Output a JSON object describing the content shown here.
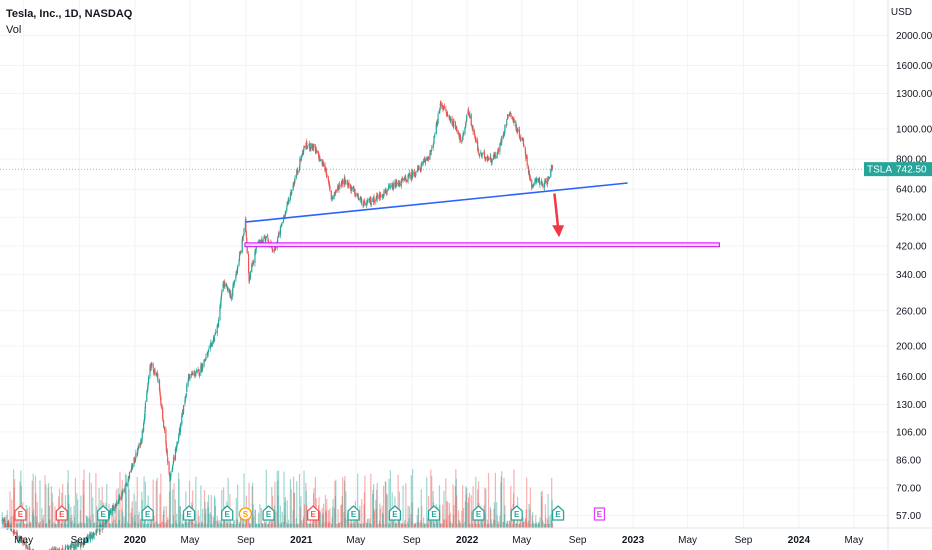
{
  "header": {
    "title": "Tesla, Inc., 1D, NASDAQ",
    "volume_label": "Vol",
    "currency": "USD"
  },
  "last_price": {
    "symbol": "TSLA",
    "value": 742.5
  },
  "colors": {
    "up": "#26a69a",
    "down": "#ef5350",
    "trendline": "#2962ff",
    "zone_border": "#d500f9",
    "zone_fill": "#f3d0f7",
    "arrow": "#f23645",
    "price_badge": "#26a69a",
    "earnings": "#26a69a",
    "earnings_loss": "#ef5350",
    "split": "#ff9800",
    "future_earnings": "#e040fb"
  },
  "chart_data": {
    "type": "candlestick",
    "y_scale": "log",
    "ylim": [
      52,
      2600
    ],
    "x_range": [
      "2019-03-10",
      "2024-07-15"
    ],
    "y_ticks": [
      57.0,
      70.0,
      86.0,
      106.0,
      130.0,
      160.0,
      200.0,
      260.0,
      340.0,
      420.0,
      520.0,
      640.0,
      800.0,
      1000.0,
      1300.0,
      1600.0,
      2000.0
    ],
    "x_ticks": [
      {
        "label": "May",
        "date": "2019-05-01",
        "bold": false
      },
      {
        "label": "Sep",
        "date": "2019-09-01",
        "bold": false
      },
      {
        "label": "2020",
        "date": "2020-01-01",
        "bold": true
      },
      {
        "label": "May",
        "date": "2020-05-01",
        "bold": false
      },
      {
        "label": "Sep",
        "date": "2020-09-01",
        "bold": false
      },
      {
        "label": "2021",
        "date": "2021-01-01",
        "bold": true
      },
      {
        "label": "May",
        "date": "2021-05-01",
        "bold": false
      },
      {
        "label": "Sep",
        "date": "2021-09-01",
        "bold": false
      },
      {
        "label": "2022",
        "date": "2022-01-01",
        "bold": true
      },
      {
        "label": "May",
        "date": "2022-05-01",
        "bold": false
      },
      {
        "label": "Sep",
        "date": "2022-09-01",
        "bold": false
      },
      {
        "label": "2023",
        "date": "2023-01-01",
        "bold": true
      },
      {
        "label": "May",
        "date": "2023-05-01",
        "bold": false
      },
      {
        "label": "Sep",
        "date": "2023-09-01",
        "bold": false
      },
      {
        "label": "2024",
        "date": "2024-01-01",
        "bold": true
      },
      {
        "label": "May",
        "date": "2024-05-01",
        "bold": false
      }
    ],
    "price_path": [
      [
        "2019-03-15",
        55
      ],
      [
        "2019-06-01",
        42
      ],
      [
        "2019-09-01",
        46
      ],
      [
        "2019-10-20",
        52
      ],
      [
        "2019-12-10",
        70
      ],
      [
        "2020-01-15",
        100
      ],
      [
        "2020-02-04",
        175
      ],
      [
        "2020-02-20",
        160
      ],
      [
        "2020-03-18",
        75
      ],
      [
        "2020-04-10",
        110
      ],
      [
        "2020-04-28",
        160
      ],
      [
        "2020-05-20",
        165
      ],
      [
        "2020-06-10",
        190
      ],
      [
        "2020-07-01",
        230
      ],
      [
        "2020-07-13",
        320
      ],
      [
        "2020-07-31",
        290
      ],
      [
        "2020-08-20",
        400
      ],
      [
        "2020-08-31",
        500
      ],
      [
        "2020-09-08",
        330
      ],
      [
        "2020-09-25",
        420
      ],
      [
        "2020-10-15",
        450
      ],
      [
        "2020-11-02",
        400
      ],
      [
        "2020-11-23",
        520
      ],
      [
        "2020-12-18",
        690
      ],
      [
        "2021-01-08",
        880
      ],
      [
        "2021-01-26",
        880
      ],
      [
        "2021-02-24",
        740
      ],
      [
        "2021-03-08",
        600
      ],
      [
        "2021-04-05",
        690
      ],
      [
        "2021-05-19",
        570
      ],
      [
        "2021-06-15",
        600
      ],
      [
        "2021-07-20",
        650
      ],
      [
        "2021-08-20",
        690
      ],
      [
        "2021-09-20",
        750
      ],
      [
        "2021-10-15",
        850
      ],
      [
        "2021-11-04",
        1210
      ],
      [
        "2021-11-20",
        1100
      ],
      [
        "2021-12-10",
        1000
      ],
      [
        "2021-12-20",
        900
      ],
      [
        "2022-01-03",
        1150
      ],
      [
        "2022-01-27",
        830
      ],
      [
        "2022-02-24",
        800
      ],
      [
        "2022-03-10",
        840
      ],
      [
        "2022-04-04",
        1145
      ],
      [
        "2022-04-20",
        1000
      ],
      [
        "2022-05-05",
        900
      ],
      [
        "2022-05-24",
        640
      ],
      [
        "2022-06-03",
        700
      ],
      [
        "2022-06-16",
        650
      ],
      [
        "2022-06-28",
        700
      ],
      [
        "2022-07-08",
        742.5
      ]
    ],
    "trendline": {
      "start": [
        "2020-09-01",
        502
      ],
      "end": [
        "2022-12-20",
        670
      ]
    },
    "support_zone": {
      "start": "2020-08-30",
      "end": "2023-07-10",
      "low": 418,
      "high": 430
    },
    "arrow": {
      "from": [
        "2022-07-12",
        620
      ],
      "to": [
        "2022-07-20",
        455
      ]
    },
    "events": [
      {
        "type": "earnings_loss",
        "label": "E",
        "date": "2019-04-24"
      },
      {
        "type": "earnings_loss",
        "label": "E",
        "date": "2019-07-24"
      },
      {
        "type": "earnings",
        "label": "E",
        "date": "2019-10-23"
      },
      {
        "type": "earnings",
        "label": "E",
        "date": "2020-01-29"
      },
      {
        "type": "earnings",
        "label": "E",
        "date": "2020-04-29"
      },
      {
        "type": "earnings",
        "label": "E",
        "date": "2020-07-22"
      },
      {
        "type": "split",
        "label": "S",
        "date": "2020-08-31"
      },
      {
        "type": "earnings",
        "label": "E",
        "date": "2020-10-21"
      },
      {
        "type": "earnings_loss",
        "label": "E",
        "date": "2021-01-27"
      },
      {
        "type": "earnings",
        "label": "E",
        "date": "2021-04-26"
      },
      {
        "type": "earnings",
        "label": "E",
        "date": "2021-07-26"
      },
      {
        "type": "earnings",
        "label": "E",
        "date": "2021-10-20"
      },
      {
        "type": "earnings",
        "label": "E",
        "date": "2022-01-26"
      },
      {
        "type": "earnings",
        "label": "E",
        "date": "2022-04-20"
      },
      {
        "type": "earnings",
        "label": "E",
        "date": "2022-07-20"
      },
      {
        "type": "future_earnings",
        "label": "E",
        "date": "2022-10-19"
      }
    ]
  }
}
